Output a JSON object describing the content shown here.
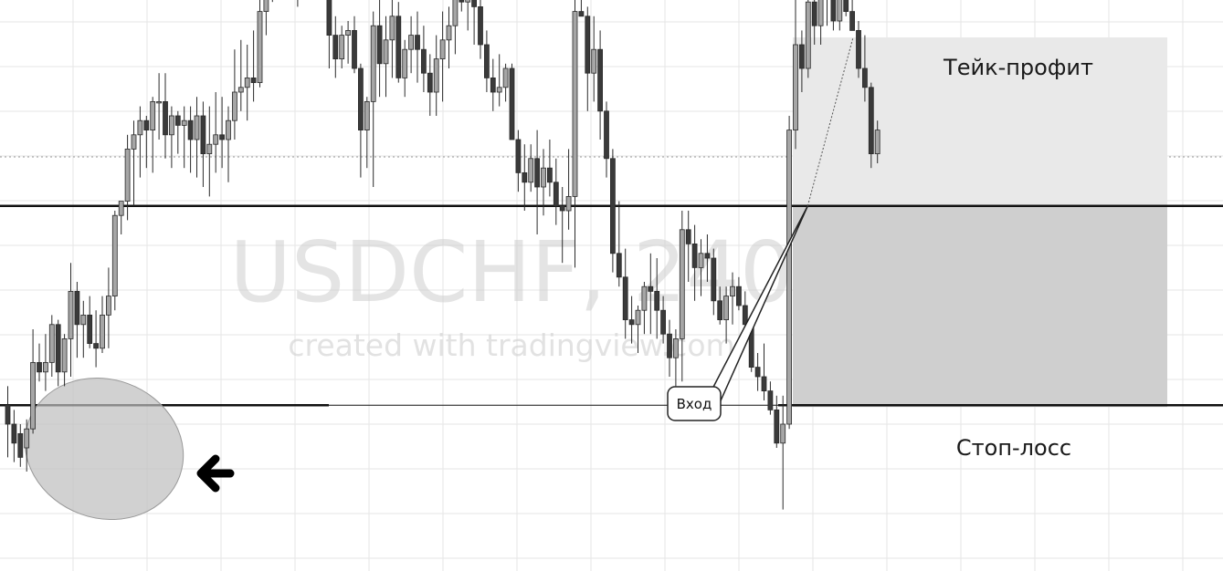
{
  "chart_data": {
    "type": "candlestick",
    "title": "",
    "watermark": {
      "symbol": "USDCHF, 240",
      "credit": "created with tradingview.com"
    },
    "xlabel": "",
    "ylabel": "",
    "ylim": [
      0,
      100
    ],
    "grid": true,
    "legend": "none",
    "colors": {
      "up_fill": "#a6a6a6",
      "down_fill": "#3a3a3a",
      "wick": "#2a2a2a",
      "grid": "#e6e6e6",
      "level_line": "#111111",
      "take_profit_zone": "#e9e9e9",
      "stop_loss_zone": "#cfcfcf",
      "highlight_ellipse": "#bdbdbd"
    },
    "candles": [
      [
        14,
        18,
        3,
        10
      ],
      [
        10,
        13,
        2,
        6
      ],
      [
        8,
        10,
        1,
        3
      ],
      [
        5,
        11,
        0,
        9
      ],
      [
        9,
        30,
        8,
        23
      ],
      [
        23,
        27,
        19,
        21
      ],
      [
        21,
        29,
        17,
        23
      ],
      [
        23,
        33,
        20,
        31
      ],
      [
        31,
        32,
        18,
        21
      ],
      [
        21,
        29,
        18,
        28
      ],
      [
        28,
        44,
        20,
        38
      ],
      [
        38,
        40,
        24,
        31
      ],
      [
        31,
        36,
        24,
        33
      ],
      [
        33,
        37,
        26,
        27
      ],
      [
        27,
        34,
        22,
        26
      ],
      [
        26,
        37,
        25,
        33
      ],
      [
        33,
        43,
        26,
        37
      ],
      [
        37,
        55,
        34,
        54
      ],
      [
        54,
        56,
        50,
        57
      ],
      [
        57,
        71,
        53,
        68
      ],
      [
        68,
        74,
        56,
        71
      ],
      [
        71,
        77,
        62,
        74
      ],
      [
        74,
        75,
        64,
        72
      ],
      [
        72,
        79,
        63,
        78
      ],
      [
        78,
        84,
        70,
        78
      ],
      [
        78,
        84,
        66,
        71
      ],
      [
        71,
        77,
        64,
        75
      ],
      [
        75,
        76,
        67,
        73
      ],
      [
        73,
        77,
        64,
        74
      ],
      [
        74,
        77,
        63,
        70
      ],
      [
        70,
        79,
        62,
        75
      ],
      [
        75,
        78,
        60,
        67
      ],
      [
        67,
        77,
        58,
        69
      ],
      [
        69,
        80,
        63,
        71
      ],
      [
        71,
        79,
        64,
        70
      ],
      [
        70,
        77,
        61,
        74
      ],
      [
        74,
        89,
        70,
        80
      ],
      [
        80,
        91,
        76,
        81
      ],
      [
        81,
        90,
        74,
        83
      ],
      [
        83,
        93,
        78,
        82
      ],
      [
        82,
        104,
        81,
        97
      ],
      [
        97,
        106,
        92,
        105
      ],
      [
        105,
        108,
        99,
        104
      ],
      [
        104,
        112,
        100,
        109
      ],
      [
        109,
        112,
        100,
        111
      ],
      [
        111,
        113,
        101,
        110
      ],
      [
        110,
        112,
        98,
        104
      ],
      [
        104,
        112,
        100,
        108
      ],
      [
        108,
        114,
        104,
        109
      ],
      [
        109,
        114,
        105,
        108
      ],
      [
        108,
        110,
        101,
        100
      ],
      [
        100,
        102,
        85,
        92
      ],
      [
        92,
        96,
        83,
        87
      ],
      [
        87,
        94,
        85,
        92
      ],
      [
        92,
        95,
        86,
        93
      ],
      [
        93,
        96,
        84,
        85
      ],
      [
        85,
        86,
        62,
        72
      ],
      [
        72,
        79,
        64,
        78
      ],
      [
        78,
        97,
        60,
        94
      ],
      [
        94,
        100,
        79,
        86
      ],
      [
        86,
        96,
        79,
        91
      ],
      [
        91,
        102,
        83,
        96
      ],
      [
        96,
        99,
        82,
        83
      ],
      [
        83,
        91,
        79,
        89
      ],
      [
        89,
        96,
        84,
        92
      ],
      [
        92,
        97,
        82,
        89
      ],
      [
        89,
        94,
        80,
        84
      ],
      [
        84,
        88,
        75,
        80
      ],
      [
        80,
        92,
        75,
        87
      ],
      [
        87,
        97,
        78,
        91
      ],
      [
        91,
        98,
        85,
        94
      ],
      [
        94,
        110,
        88,
        104
      ],
      [
        104,
        118,
        97,
        99
      ],
      [
        99,
        110,
        93,
        100
      ],
      [
        100,
        110,
        90,
        98
      ],
      [
        98,
        103,
        87,
        90
      ],
      [
        90,
        93,
        80,
        83
      ],
      [
        83,
        87,
        76,
        80
      ],
      [
        80,
        88,
        77,
        81
      ],
      [
        81,
        86,
        78,
        85
      ],
      [
        85,
        86,
        71,
        70
      ],
      [
        70,
        72,
        59,
        63
      ],
      [
        63,
        69,
        55,
        61
      ],
      [
        61,
        69,
        59,
        66
      ],
      [
        66,
        72,
        50,
        60
      ],
      [
        60,
        68,
        54,
        64
      ],
      [
        64,
        70,
        58,
        61
      ],
      [
        61,
        66,
        52,
        56
      ],
      [
        56,
        60,
        44,
        55
      ],
      [
        55,
        68,
        51,
        58
      ],
      [
        58,
        102,
        43,
        97
      ],
      [
        97,
        108,
        96,
        96
      ],
      [
        96,
        98,
        76,
        84
      ],
      [
        84,
        96,
        78,
        89
      ],
      [
        89,
        93,
        70,
        76
      ],
      [
        76,
        78,
        62,
        66
      ],
      [
        66,
        68,
        42,
        46
      ],
      [
        46,
        57,
        39,
        41
      ],
      [
        41,
        47,
        28,
        32
      ],
      [
        32,
        37,
        27,
        31
      ],
      [
        31,
        35,
        25,
        34
      ],
      [
        34,
        40,
        29,
        39
      ],
      [
        39,
        46,
        29,
        38
      ],
      [
        38,
        45,
        28,
        34
      ],
      [
        34,
        37,
        27,
        29
      ],
      [
        29,
        32,
        20,
        24
      ],
      [
        24,
        30,
        18,
        28
      ],
      [
        28,
        55,
        19,
        51
      ],
      [
        51,
        55,
        40,
        48
      ],
      [
        48,
        52,
        36,
        43
      ],
      [
        43,
        49,
        37,
        46
      ],
      [
        46,
        50,
        40,
        45
      ],
      [
        45,
        47,
        33,
        36
      ],
      [
        36,
        39,
        31,
        32
      ],
      [
        32,
        39,
        27,
        37
      ],
      [
        37,
        42,
        31,
        39
      ],
      [
        39,
        41,
        34,
        35
      ],
      [
        35,
        38,
        30,
        31
      ],
      [
        31,
        33,
        21,
        22
      ],
      [
        22,
        25,
        17,
        20
      ],
      [
        20,
        27,
        15,
        17
      ],
      [
        17,
        19,
        12,
        13
      ],
      [
        13,
        16,
        5,
        6
      ],
      [
        6,
        16,
        -8,
        10
      ],
      [
        10,
        75,
        9,
        72
      ],
      [
        72,
        100,
        68,
        90
      ],
      [
        90,
        93,
        80,
        85
      ],
      [
        85,
        103,
        83,
        99
      ],
      [
        99,
        101,
        90,
        94
      ],
      [
        94,
        106,
        90,
        100
      ],
      [
        100,
        113,
        94,
        105
      ],
      [
        105,
        106,
        93,
        95
      ],
      [
        95,
        110,
        93,
        101
      ],
      [
        101,
        104,
        96,
        97
      ],
      [
        97,
        103,
        94,
        93
      ],
      [
        93,
        95,
        83,
        85
      ],
      [
        85,
        92,
        78,
        81
      ],
      [
        81,
        82,
        64,
        67
      ],
      [
        67,
        74,
        65,
        72
      ]
    ],
    "levels": [
      56,
      14
    ],
    "entry_label": "Вход",
    "take_profit_label": "Тейк-профит",
    "stop_loss_label": "Стоп-лосс"
  }
}
